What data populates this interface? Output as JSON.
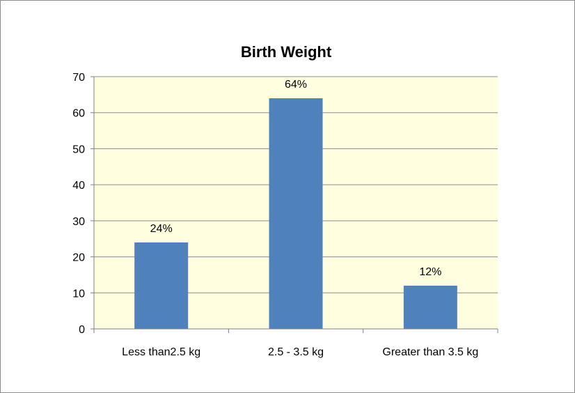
{
  "chart_data": {
    "type": "bar",
    "title": "Birth Weight",
    "categories": [
      "Less than2.5 kg",
      "2.5 - 3.5 kg",
      "Greater than 3.5 kg"
    ],
    "values": [
      24,
      64,
      12
    ],
    "data_labels": [
      "24%",
      "64%",
      "12%"
    ],
    "ylim": [
      0,
      70
    ],
    "yticks": [
      "0",
      "10",
      "20",
      "30",
      "40",
      "50",
      "60",
      "70"
    ],
    "xlabel": "",
    "ylabel": "",
    "grid": true,
    "legend": "none",
    "colors": {
      "bar": "#4f81bd",
      "plot_background": "#ffffe0",
      "gridline": "#8c8c8c"
    }
  }
}
